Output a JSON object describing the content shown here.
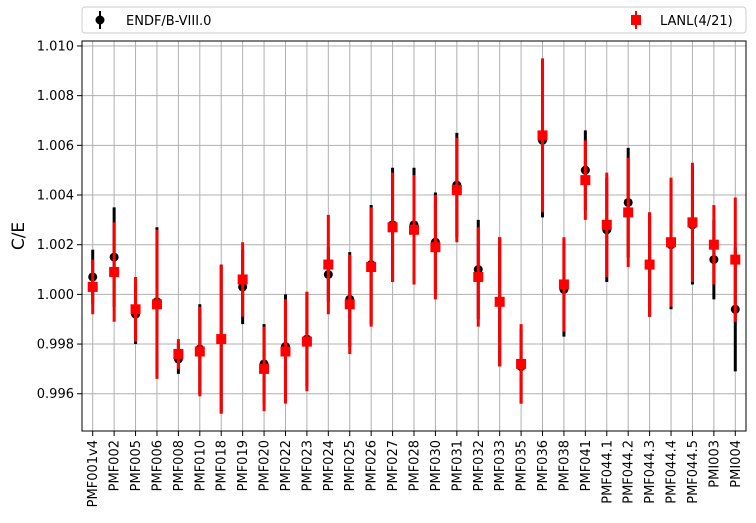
{
  "chart_data": {
    "type": "scatter",
    "title": "",
    "xlabel": "",
    "ylabel": "C/E",
    "ylim": [
      0.9945,
      1.0102
    ],
    "yticks": [
      "0.996",
      "0.998",
      "1.000",
      "1.002",
      "1.004",
      "1.006",
      "1.008",
      "1.010"
    ],
    "grid": true,
    "legend_position": "top, outside plot",
    "categories": [
      "PMF001v4",
      "PMF002",
      "PMF005",
      "PMF006",
      "PMF008",
      "PMF010",
      "PMF018",
      "PMF019",
      "PMF020",
      "PMF022",
      "PMF023",
      "PMF024",
      "PMF025",
      "PMF026",
      "PMF027",
      "PMF028",
      "PMF030",
      "PMF031",
      "PMF032",
      "PMF033",
      "PMF035",
      "PMF036",
      "PMF038",
      "PMF041",
      "PMF044.1",
      "PMF044.2",
      "PMF044.3",
      "PMF044.4",
      "PMF044.5",
      "PMI003",
      "PMI004"
    ],
    "series": [
      {
        "name": "ENDF/B-VIII.0",
        "color": "#000000",
        "marker": "circle",
        "values": [
          1.0007,
          1.0015,
          0.9992,
          0.9997,
          0.9974,
          0.9978,
          0.9982,
          1.0003,
          0.9972,
          0.9979,
          0.9982,
          1.0008,
          0.9998,
          1.0012,
          1.0028,
          1.0028,
          1.0021,
          1.0044,
          1.001,
          0.9997,
          0.9971,
          1.0062,
          1.0002,
          1.005,
          1.0026,
          1.0037,
          1.0012,
          1.002,
          1.0028,
          1.0014,
          0.9994
        ],
        "errors": [
          0.0011,
          0.002,
          0.0012,
          0.003,
          0.0006,
          0.0018,
          0.003,
          0.0015,
          0.0016,
          0.0021,
          0.0019,
          0.0011,
          0.0019,
          0.0024,
          0.0023,
          0.0023,
          0.002,
          0.0021,
          0.002,
          0.0026,
          0.0015,
          0.0031,
          0.0019,
          0.0016,
          0.0021,
          0.0022,
          0.0021,
          0.0026,
          0.0024,
          0.0016,
          0.0025
        ]
      },
      {
        "name": "LANL(4/21)",
        "color": "#ff0000",
        "marker": "square",
        "values": [
          1.0003,
          1.0009,
          0.9994,
          0.9996,
          0.9976,
          0.9977,
          0.9982,
          1.0006,
          0.997,
          0.9977,
          0.9981,
          1.0012,
          0.9996,
          1.0011,
          1.0027,
          1.0026,
          1.0019,
          1.0042,
          1.0007,
          0.9997,
          0.9972,
          1.0064,
          1.0004,
          1.0046,
          1.0028,
          1.0033,
          1.0012,
          1.0021,
          1.0029,
          1.002,
          1.0014
        ]
      }
    ],
    "lanl_errors": [
      0.0011,
      0.002,
      0.0013,
      0.003,
      0.0006,
      0.0018,
      0.003,
      0.0015,
      0.0017,
      0.0021,
      0.002,
      0.002,
      0.002,
      0.0024,
      0.0022,
      0.0022,
      0.0021,
      0.0021,
      0.002,
      0.0026,
      0.0016,
      0.0031,
      0.0019,
      0.0016,
      0.0021,
      0.0022,
      0.0021,
      0.0026,
      0.0024,
      0.0016,
      0.0025
    ]
  }
}
